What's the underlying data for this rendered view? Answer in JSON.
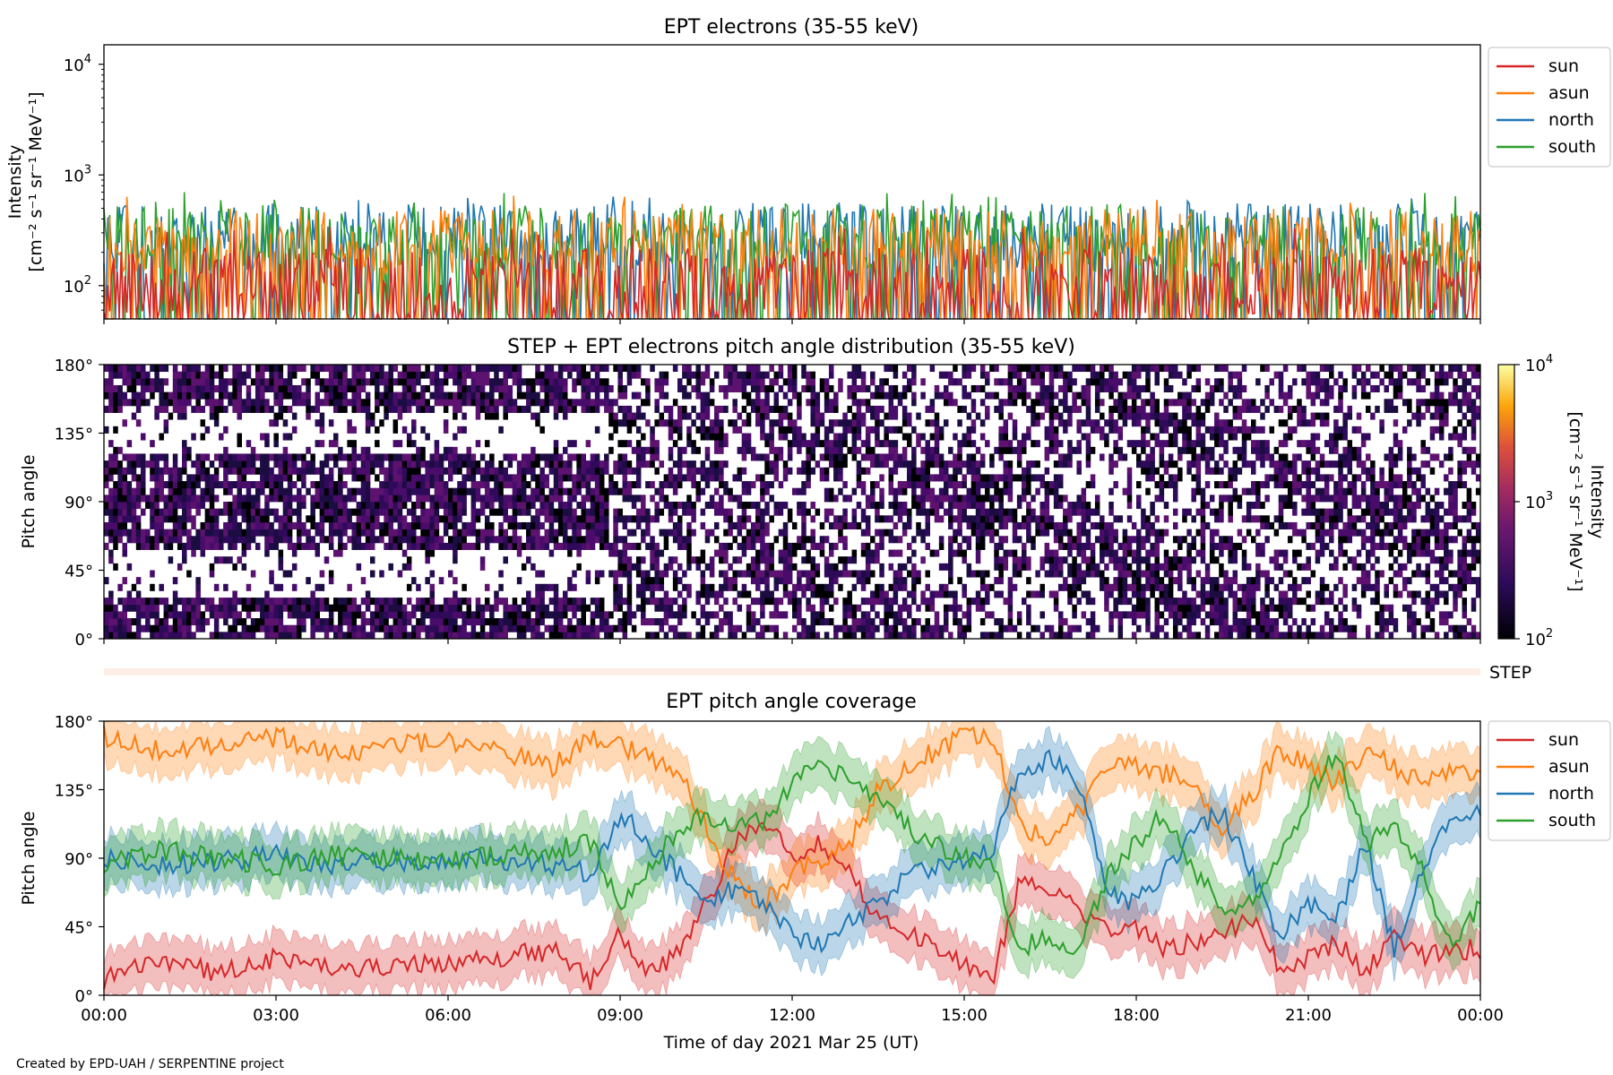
{
  "credit": "Created by EPD-UAH / SERPENTINE project",
  "xlabel": "Time of day 2021 Mar 25 (UT)",
  "x_ticks": [
    "00:00",
    "03:00",
    "06:00",
    "09:00",
    "12:00",
    "15:00",
    "18:00",
    "21:00",
    "00:00"
  ],
  "colors": {
    "sun": "#d62728",
    "asun": "#ff7f0e",
    "north": "#1f77b4",
    "south": "#2ca02c",
    "step_strip": "#fdeee6"
  },
  "chart_data": [
    {
      "type": "line",
      "title": "EPT electrons (35-55 keV)",
      "ylabel_line1": "Intensity",
      "ylabel_line2": "[cm⁻² s⁻¹ sr⁻¹ MeV⁻¹]",
      "yscale": "log",
      "ylim": [
        50,
        15000
      ],
      "y_ticks": [
        {
          "v": 100,
          "base": "10",
          "exp": "2"
        },
        {
          "v": 1000,
          "base": "10",
          "exp": "3"
        },
        {
          "v": 10000,
          "base": "10",
          "exp": "4"
        }
      ],
      "x_range_hours": [
        0,
        24
      ],
      "legend": {
        "placement": "right-top",
        "entries": [
          "sun",
          "asun",
          "north",
          "south"
        ]
      },
      "series": [
        {
          "name": "north",
          "typical": 280,
          "peak": 650
        },
        {
          "name": "south",
          "typical": 270,
          "peak": 700
        },
        {
          "name": "asun",
          "typical": 250,
          "peak": 660
        },
        {
          "name": "sun",
          "typical": 110,
          "peak": 350
        }
      ]
    },
    {
      "type": "heatmap",
      "title": "STEP + EPT electrons pitch angle distribution (35-55 keV)",
      "ylabel": "Pitch angle",
      "y_ticks": [
        "0°",
        "45°",
        "90°",
        "135°",
        "180°"
      ],
      "ylim": [
        0,
        180
      ],
      "x_range_hours": [
        0,
        24
      ],
      "colorbar": {
        "label_line1": "Intensity",
        "label_line2": "[cm⁻² s⁻¹ sr⁻¹ MeV⁻¹]",
        "scale": "log",
        "range": [
          100,
          10000
        ],
        "ticks": [
          {
            "base": "10",
            "exp": "2"
          },
          {
            "base": "10",
            "exp": "3"
          },
          {
            "base": "10",
            "exp": "4"
          }
        ]
      },
      "step_strip_label": "STEP"
    },
    {
      "type": "line",
      "title": "EPT pitch angle coverage",
      "ylabel": "Pitch angle",
      "y_ticks": [
        "0°",
        "45°",
        "90°",
        "135°",
        "180°"
      ],
      "ylim": [
        0,
        180
      ],
      "x_range_hours": [
        0,
        24
      ],
      "legend": {
        "placement": "right-top",
        "entries": [
          "sun",
          "asun",
          "north",
          "south"
        ]
      },
      "series": [
        {
          "name": "sun",
          "x": [
            0,
            1,
            2,
            3,
            4,
            5,
            6,
            7,
            7.8,
            8.5,
            9,
            9.5,
            10,
            10.5,
            11,
            11.5,
            12,
            12.5,
            13,
            13.5,
            14,
            14.5,
            15,
            15.5,
            16,
            16.5,
            17,
            17.5,
            18,
            18.5,
            19,
            19.5,
            20,
            20.5,
            21,
            21.5,
            22,
            22.5,
            23,
            23.5,
            24
          ],
          "y": [
            10,
            22,
            15,
            25,
            18,
            20,
            22,
            25,
            30,
            10,
            40,
            12,
            30,
            60,
            100,
            115,
            90,
            100,
            80,
            50,
            40,
            30,
            20,
            10,
            80,
            70,
            55,
            40,
            45,
            30,
            35,
            40,
            50,
            20,
            25,
            35,
            15,
            40,
            25,
            30,
            30
          ]
        },
        {
          "name": "asun",
          "x": [
            0,
            1,
            2,
            3,
            4,
            5,
            6,
            7,
            7.8,
            8.5,
            9,
            9.5,
            10,
            10.5,
            11,
            11.5,
            12,
            12.5,
            13,
            13.5,
            14,
            14.5,
            15,
            15.5,
            16,
            16.5,
            17,
            17.5,
            18,
            18.5,
            19,
            19.5,
            20,
            20.5,
            21,
            21.5,
            22,
            22.5,
            23,
            23.5,
            24
          ],
          "y": [
            170,
            160,
            165,
            170,
            158,
            165,
            168,
            160,
            150,
            168,
            165,
            155,
            150,
            110,
            75,
            60,
            80,
            90,
            100,
            135,
            150,
            160,
            170,
            170,
            110,
            100,
            120,
            150,
            150,
            145,
            140,
            110,
            130,
            160,
            150,
            140,
            160,
            150,
            140,
            150,
            145
          ]
        },
        {
          "name": "north",
          "x": [
            0,
            1,
            2,
            3,
            4,
            5,
            6,
            7,
            7.8,
            8.5,
            9,
            9.5,
            10,
            10.5,
            11,
            11.5,
            12,
            12.5,
            13,
            13.5,
            14,
            14.5,
            15,
            15.5,
            16,
            16.5,
            17,
            17.5,
            18,
            18.5,
            19,
            19.5,
            20,
            20.5,
            21,
            21.5,
            22,
            22.5,
            23,
            23.5,
            24
          ],
          "y": [
            90,
            85,
            88,
            92,
            85,
            88,
            90,
            88,
            85,
            80,
            120,
            100,
            80,
            60,
            70,
            60,
            40,
            35,
            50,
            60,
            80,
            85,
            90,
            95,
            150,
            155,
            140,
            70,
            60,
            80,
            110,
            120,
            80,
            40,
            60,
            50,
            100,
            30,
            80,
            120,
            120
          ]
        },
        {
          "name": "south",
          "x": [
            0,
            1,
            2,
            3,
            4,
            5,
            6,
            7,
            7.8,
            8.5,
            9,
            9.5,
            10,
            10.5,
            11,
            11.5,
            12,
            12.5,
            13,
            13.5,
            14,
            14.5,
            15,
            15.5,
            16,
            16.5,
            17,
            17.5,
            18,
            18.5,
            19,
            19.5,
            20,
            20.5,
            21,
            21.5,
            22,
            22.5,
            23,
            23.5,
            24
          ],
          "y": [
            85,
            95,
            90,
            85,
            92,
            90,
            88,
            92,
            95,
            100,
            60,
            80,
            110,
            120,
            110,
            115,
            140,
            150,
            140,
            130,
            110,
            100,
            90,
            85,
            30,
            40,
            30,
            80,
            100,
            120,
            80,
            60,
            60,
            90,
            130,
            160,
            100,
            110,
            80,
            30,
            60
          ]
        }
      ]
    }
  ]
}
